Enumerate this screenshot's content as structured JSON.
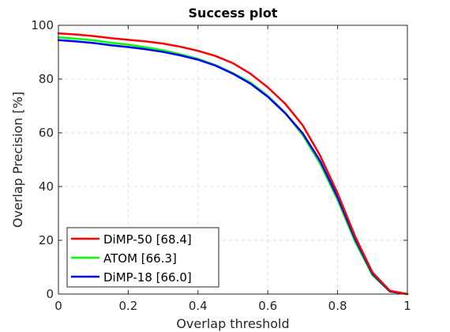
{
  "chart_data": {
    "type": "line",
    "title": "Success plot",
    "xlabel": "Overlap threshold",
    "ylabel": "Overlap Precision [%]",
    "xlim": [
      0,
      1
    ],
    "ylim": [
      0,
      100
    ],
    "xticks": [
      0,
      0.2,
      0.4,
      0.6,
      0.8,
      1
    ],
    "xtick_labels": [
      "0",
      "0.2",
      "0.4",
      "0.6",
      "0.8",
      "1"
    ],
    "yticks": [
      0,
      20,
      40,
      60,
      80,
      100
    ],
    "ytick_labels": [
      "0",
      "20",
      "40",
      "60",
      "80",
      "100"
    ],
    "grid": true,
    "legend_position": "bottom-left",
    "x": [
      0,
      0.05,
      0.1,
      0.15,
      0.2,
      0.25,
      0.3,
      0.35,
      0.4,
      0.45,
      0.5,
      0.55,
      0.6,
      0.65,
      0.7,
      0.75,
      0.8,
      0.85,
      0.9,
      0.95,
      1
    ],
    "series": [
      {
        "name": "ATOM [66.3]",
        "color": "#00ff00",
        "values": [
          95.5,
          95.0,
          94.4,
          93.5,
          92.8,
          91.8,
          90.7,
          89.2,
          87.5,
          85.2,
          82.2,
          78.7,
          73.8,
          67.4,
          59.2,
          48.5,
          35.0,
          19.5,
          7.0,
          0.9,
          0.0
        ]
      },
      {
        "name": "DiMP-18 [66.0]",
        "color": "#0000ff",
        "values": [
          94.5,
          94.0,
          93.4,
          92.6,
          91.9,
          91.1,
          90.1,
          88.8,
          87.2,
          85.0,
          82.0,
          78.3,
          73.4,
          67.3,
          59.8,
          49.5,
          36.0,
          20.5,
          7.5,
          1.0,
          0.0
        ]
      },
      {
        "name": "DiMP-50 [68.4]",
        "color": "#ff0000",
        "values": [
          97.0,
          96.6,
          96.0,
          95.2,
          94.6,
          94.0,
          93.2,
          92.0,
          90.5,
          88.6,
          85.9,
          82.0,
          76.9,
          70.8,
          62.8,
          51.5,
          37.5,
          21.5,
          8.0,
          1.2,
          0.0
        ]
      }
    ],
    "legend_order": [
      "DiMP-50 [68.4]",
      "ATOM [66.3]",
      "DiMP-18 [66.0]"
    ]
  }
}
